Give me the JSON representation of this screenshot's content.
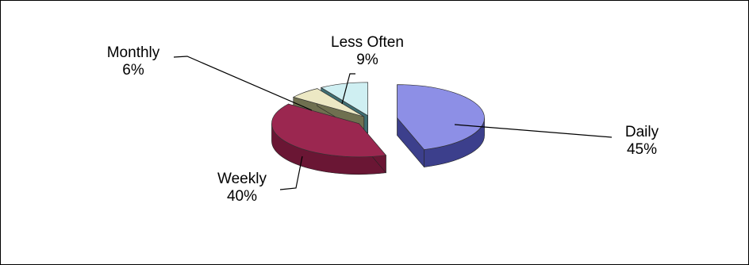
{
  "chart_data": {
    "type": "pie",
    "style": "3d-exploded",
    "slices": [
      {
        "category": "Daily",
        "value": 45,
        "value_label": "45%",
        "color": "#8d8fe6",
        "side_color": "#3c3f8c"
      },
      {
        "category": "Weekly",
        "value": 40,
        "value_label": "40%",
        "color": "#9b2750",
        "side_color": "#6a1634"
      },
      {
        "category": "Monthly",
        "value": 6,
        "value_label": "6%",
        "color": "#ece8c4",
        "side_color": "#6f7050"
      },
      {
        "category": "Less Often",
        "value": 9,
        "value_label": "9%",
        "color": "#cfeff2",
        "side_color": "#3f6f73"
      }
    ],
    "legend": "none",
    "label_position": "outside with leader lines"
  }
}
